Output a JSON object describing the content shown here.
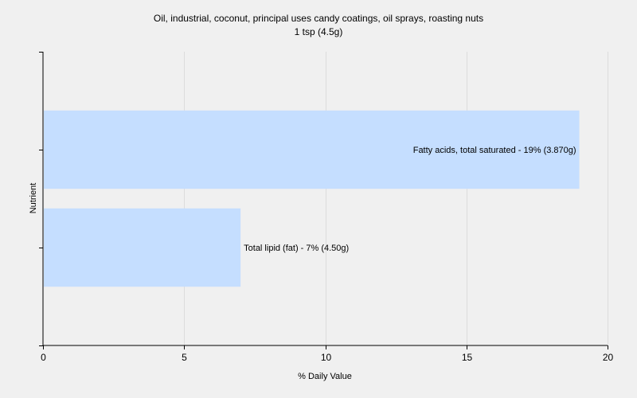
{
  "chart_data": {
    "type": "bar",
    "orientation": "horizontal",
    "title": "Oil, industrial, coconut, principal uses candy coatings, oil sprays, roasting nuts",
    "subtitle": "1 tsp (4.5g)",
    "xlabel": "% Daily Value",
    "ylabel": "Nutrient",
    "xlim": [
      0,
      20
    ],
    "xticks": [
      0,
      5,
      10,
      15,
      20
    ],
    "grid": true,
    "bar_color": "#c5deff",
    "categories": [
      "Fatty acids, total saturated",
      "Total lipid (fat)"
    ],
    "values": [
      19,
      7
    ],
    "labels": [
      "Fatty acids, total saturated - 19% (3.870g)",
      "Total lipid (fat) - 7% (4.50g)"
    ]
  }
}
